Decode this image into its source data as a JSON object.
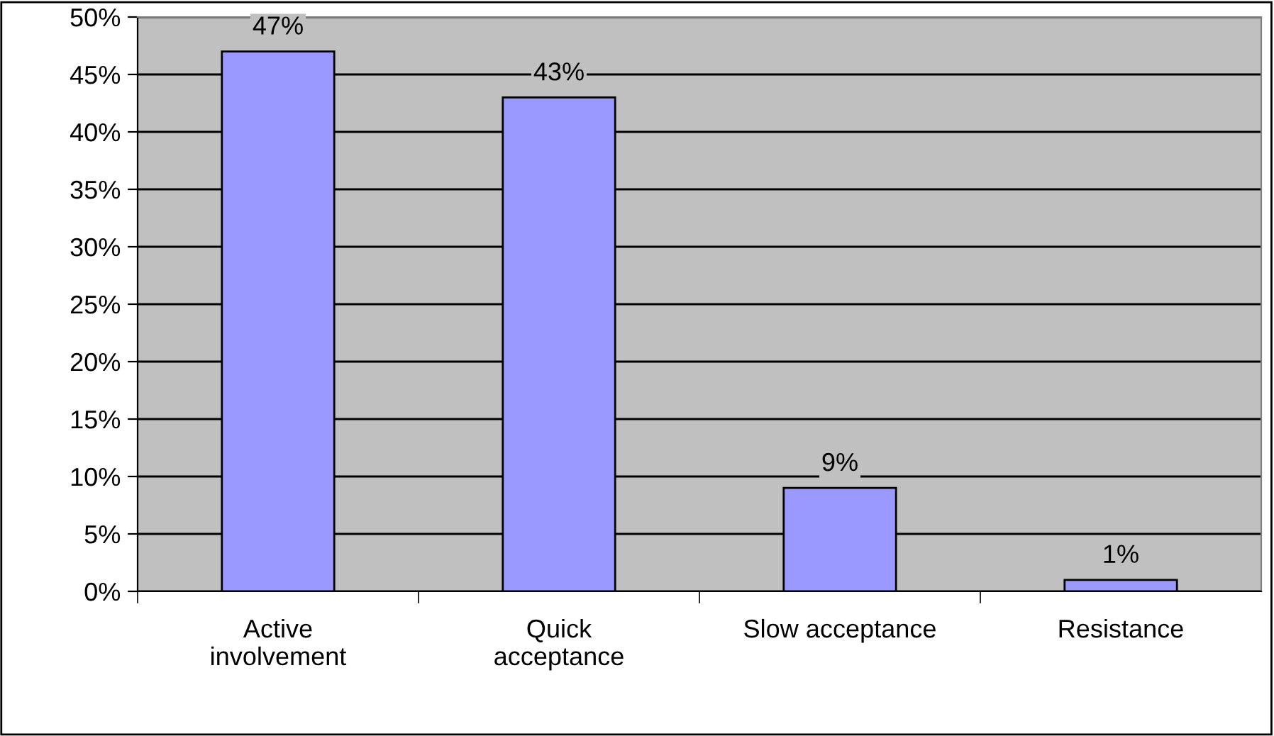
{
  "chart_data": {
    "type": "bar",
    "categories": [
      "Active\ninvolvement",
      "Quick\nacceptance",
      "Slow acceptance",
      "Resistance"
    ],
    "values": [
      47,
      43,
      9,
      1
    ],
    "value_labels": [
      "47%",
      "43%",
      "9%",
      "1%"
    ],
    "color": "#9999ff",
    "ylim": [
      0,
      50
    ],
    "yticks": [
      {
        "value": 0,
        "label": "0%"
      },
      {
        "value": 5,
        "label": "5%"
      },
      {
        "value": 10,
        "label": "10%"
      },
      {
        "value": 15,
        "label": "15%"
      },
      {
        "value": 20,
        "label": "20%"
      },
      {
        "value": 25,
        "label": "25%"
      },
      {
        "value": 30,
        "label": "30%"
      },
      {
        "value": 35,
        "label": "35%"
      },
      {
        "value": 40,
        "label": "40%"
      },
      {
        "value": 45,
        "label": "45%"
      },
      {
        "value": 50,
        "label": "50%"
      }
    ],
    "grid": "y",
    "legend": false
  }
}
